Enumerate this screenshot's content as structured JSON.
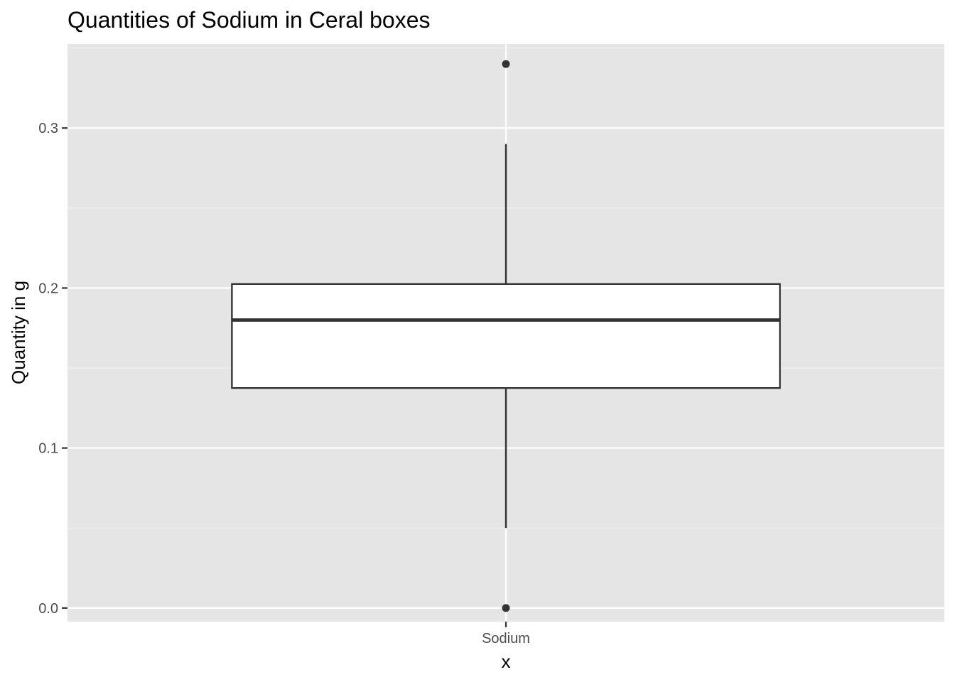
{
  "chart_data": {
    "type": "boxplot",
    "title": "Quantities of Sodium in Ceral boxes",
    "xlabel": "x",
    "ylabel": "Quantity in g",
    "categories": [
      "Sodium"
    ],
    "boxes": [
      {
        "category": "Sodium",
        "whisker_low": 0.05,
        "q1": 0.1375,
        "median": 0.18,
        "q3": 0.2025,
        "whisker_high": 0.29,
        "outliers": [
          0.0,
          0.34
        ]
      }
    ],
    "yticks": [
      0.0,
      0.1,
      0.2,
      0.3
    ],
    "ytick_labels": [
      "0.0",
      "0.1",
      "0.2",
      "0.3"
    ],
    "ylim": [
      -0.0085,
      0.3525
    ],
    "grid": true,
    "colors": {
      "panel_background": "#e5e5e5",
      "grid_major": "#ffffff",
      "grid_minor": "#f2f2f2",
      "box_fill": "#ffffff",
      "box_line": "#333333",
      "outlier": "#333333",
      "axis_text": "#4d4d4d"
    }
  }
}
